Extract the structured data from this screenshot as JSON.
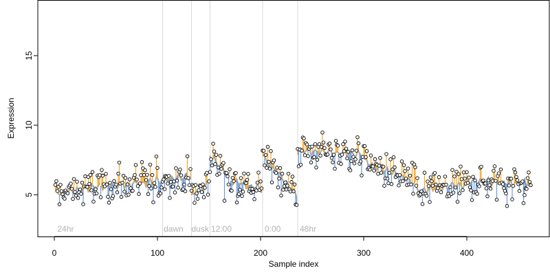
{
  "chart_data": {
    "type": "scatter",
    "title": "",
    "xlabel": "Sample index",
    "ylabel": "Expression",
    "xlim": [
      -16,
      480
    ],
    "ylim": [
      2,
      19
    ],
    "x_ticks": [
      0,
      100,
      200,
      300,
      400
    ],
    "y_ticks": [
      5,
      10,
      15
    ],
    "grid": false,
    "legend": "none",
    "colors": {
      "above_fit": "#f5a623",
      "below_fit": "#6a9bd8",
      "fit_line": "#a8a8a8",
      "marker_fill": "#ffffff",
      "marker_edge": "#000000",
      "divider": "#d9d9d9",
      "annotation": "#b3b3b3"
    },
    "dividers": [
      105,
      133,
      151,
      202,
      236
    ],
    "annotations": [
      {
        "x": 3,
        "label": "24hr"
      },
      {
        "x": 106,
        "label": "dawn"
      },
      {
        "x": 133,
        "label": "dusk"
      },
      {
        "x": 152,
        "label": "12:00"
      },
      {
        "x": 204,
        "label": "0:00"
      },
      {
        "x": 238,
        "label": "48hr"
      }
    ],
    "segments": [
      {
        "x0": 1,
        "x1": 44,
        "fit_start": 5.1,
        "fit_end": 5.6
      },
      {
        "x0": 45,
        "x1": 104,
        "fit_start": 5.6,
        "fit_end": 6.0
      },
      {
        "x0": 105,
        "x1": 132,
        "fit_start": 6.1,
        "fit_end": 6.3
      },
      {
        "x0": 133,
        "x1": 150,
        "fit_start": 4.9,
        "fit_end": 5.9
      },
      {
        "x0": 151,
        "x1": 170,
        "fit_start": 7.8,
        "fit_end": 6.4
      },
      {
        "x0": 171,
        "x1": 201,
        "fit_start": 6.0,
        "fit_end": 5.4
      },
      {
        "x0": 202,
        "x1": 235,
        "fit_start": 7.8,
        "fit_end": 5.0
      },
      {
        "x0": 236,
        "x1": 300,
        "fit_start": 8.2,
        "fit_end": 7.9
      },
      {
        "x0": 301,
        "x1": 350,
        "fit_start": 7.4,
        "fit_end": 5.8
      },
      {
        "x0": 351,
        "x1": 400,
        "fit_start": 5.3,
        "fit_end": 5.7
      },
      {
        "x0": 401,
        "x1": 462,
        "fit_start": 6.0,
        "fit_end": 5.8
      }
    ]
  }
}
